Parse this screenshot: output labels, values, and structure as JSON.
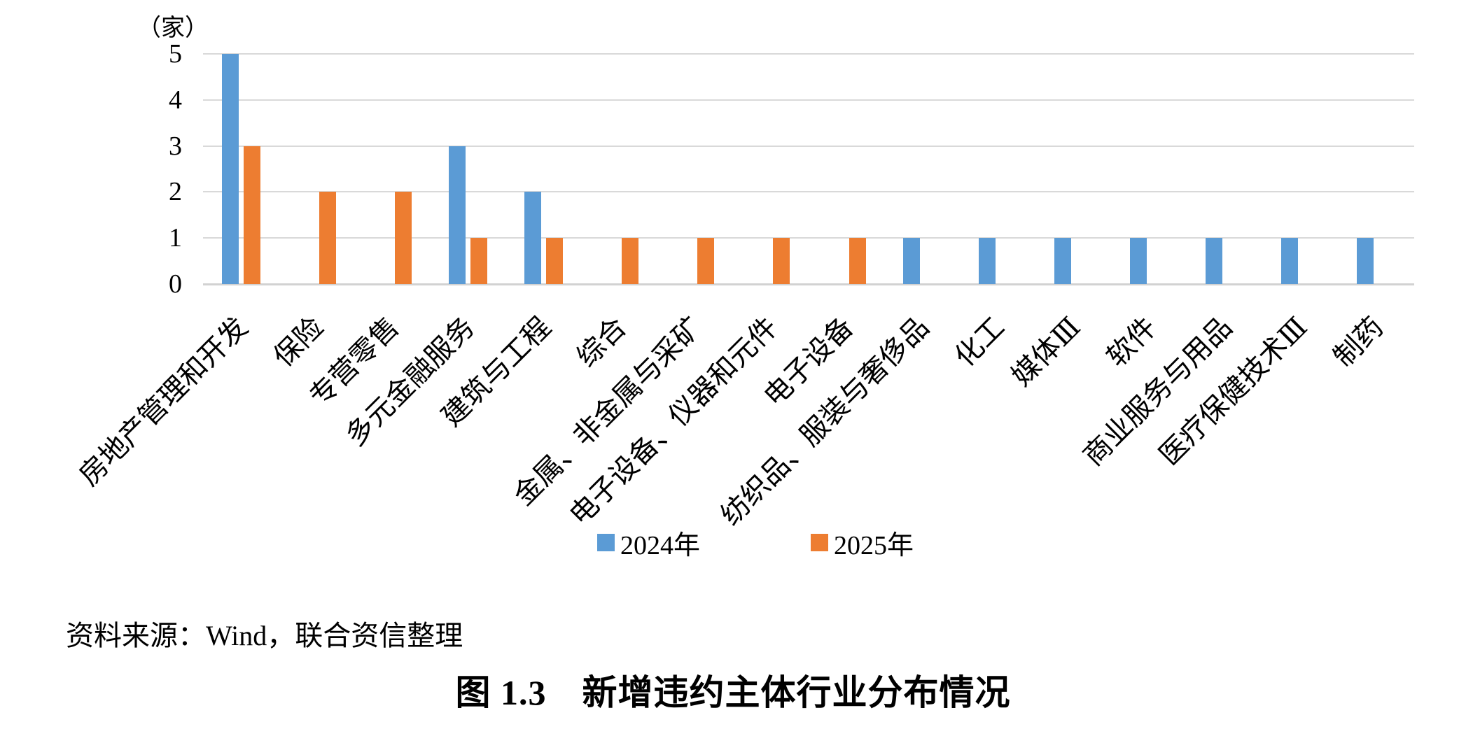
{
  "chart_data": {
    "type": "bar",
    "unit_label": "（家）",
    "categories": [
      "房地产管理和开发",
      "保险",
      "专营零售",
      "多元金融服务",
      "建筑与工程",
      "综合",
      "金属、非金属与采矿",
      "电子设备、仪器和元件",
      "电子设备",
      "纺织品、服装与奢侈品",
      "化工",
      "媒体Ⅲ",
      "软件",
      "商业服务与用品",
      "医疗保健技术Ⅲ",
      "制药"
    ],
    "series": [
      {
        "name": "2024年",
        "color": "#5B9BD5",
        "values": [
          5,
          0,
          0,
          3,
          2,
          0,
          0,
          0,
          0,
          1,
          1,
          1,
          1,
          1,
          1,
          1
        ]
      },
      {
        "name": "2025年",
        "color": "#ED7D31",
        "values": [
          3,
          2,
          2,
          1,
          1,
          1,
          1,
          1,
          1,
          0,
          0,
          0,
          0,
          0,
          0,
          0
        ]
      }
    ],
    "ylim": [
      0,
      5
    ],
    "yticks": [
      0,
      1,
      2,
      3,
      4,
      5
    ],
    "grid": "horizontal",
    "legend_position": "bottom",
    "gridline_color": "#D9D9D9"
  },
  "source_note": "资料来源：Wind，联合资信整理",
  "caption": "图 1.3　新增违约主体行业分布情况"
}
